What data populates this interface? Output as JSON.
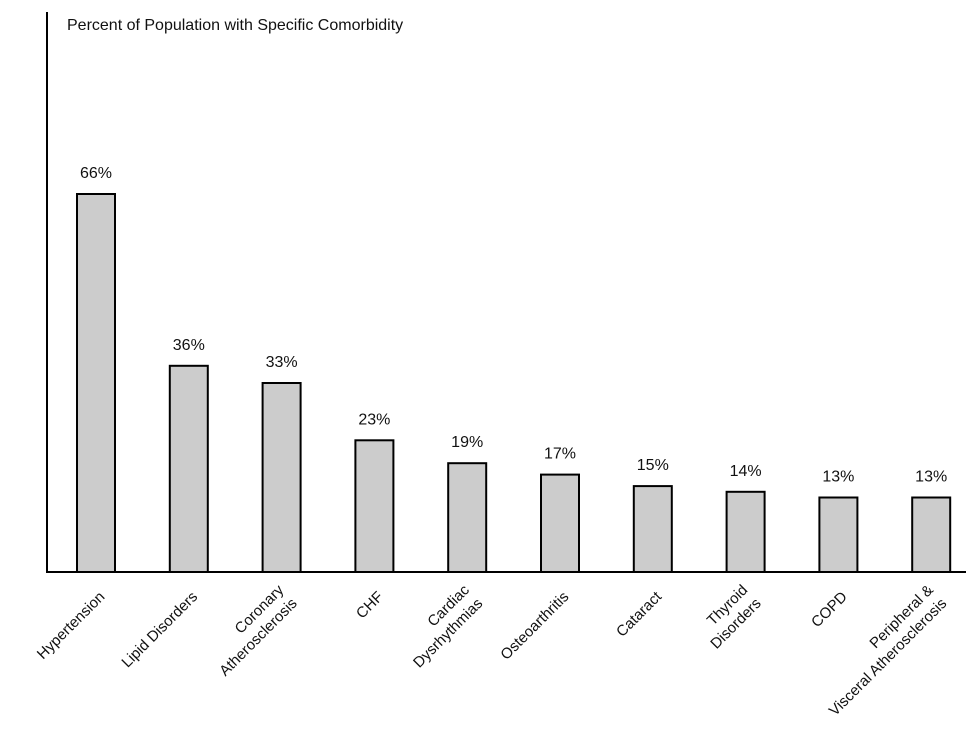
{
  "chart_data": {
    "type": "bar",
    "title": "Percent of Population with Specific Comorbidity",
    "categories": [
      [
        "Hypertension"
      ],
      [
        "Lipid Disorders"
      ],
      [
        "Coronary",
        "Atherosclerosis"
      ],
      [
        "CHF"
      ],
      [
        "Cardiac",
        "Dysrhythmias"
      ],
      [
        "Osteoarthritis"
      ],
      [
        "Cataract"
      ],
      [
        "Thyroid",
        "Disorders"
      ],
      [
        "COPD"
      ],
      [
        "Peripheral &",
        "Visceral Atherosclerosis"
      ]
    ],
    "values": [
      66,
      36,
      33,
      23,
      19,
      17,
      15,
      14,
      13,
      13
    ],
    "data_labels": [
      "66%",
      "36%",
      "33%",
      "23%",
      "19%",
      "17%",
      "15%",
      "14%",
      "13%",
      "13%"
    ],
    "ylim": [
      0,
      100
    ],
    "bar_color": "#cccccc",
    "edge_color": "#000000",
    "grid": false
  }
}
